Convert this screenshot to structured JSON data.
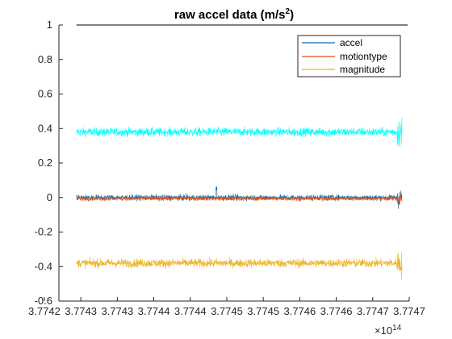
{
  "chart_data": {
    "type": "line",
    "title": "raw accel data (m/s",
    "title_superscript": "2",
    "title_close": ")",
    "xlabel": "",
    "ylabel": "",
    "x_exponent_base": "×10",
    "x_exponent_power": "14",
    "xlim": [
      3.77422,
      3.7747
    ],
    "ylim": [
      -0.6,
      1.0
    ],
    "x_ticks": [
      3.7742,
      3.77425,
      3.7743,
      3.77435,
      3.7744,
      3.77445,
      3.7745,
      3.77455,
      3.7746,
      3.77465,
      3.7747
    ],
    "x_tick_labels": [
      "3.7742",
      "3.7743",
      "3.7743",
      "3.7744",
      "3.7744",
      "3.7745",
      "3.7745",
      "3.7746",
      "3.7746",
      "3.7747",
      "3.7747"
    ],
    "y_ticks": [
      -0.6,
      -0.4,
      -0.2,
      0,
      0.2,
      0.4,
      0.6,
      0.8,
      1.0
    ],
    "y_tick_labels": [
      "-0.6",
      "-0.4",
      "-0.2",
      "0",
      "0.2",
      "0.4",
      "0.6",
      "0.8",
      "1"
    ],
    "grid": false,
    "legend_position": "top-right",
    "x_start": 3.774244,
    "x_end": 3.77469,
    "series": [
      {
        "name": "accel",
        "color": "#0072BD",
        "mean": 0.0,
        "noise": 0.012
      },
      {
        "name": "motiontype",
        "color": "#D95319",
        "mean": -0.005,
        "noise": 0.01
      },
      {
        "name": "magnitude",
        "color": "#EDB120",
        "mean": -0.38,
        "noise": 0.018
      },
      {
        "name": "",
        "color": "#00FFFF",
        "mean": 0.38,
        "noise": 0.018
      }
    ],
    "reference_line": {
      "y": 1.0,
      "color": "#000000"
    }
  }
}
